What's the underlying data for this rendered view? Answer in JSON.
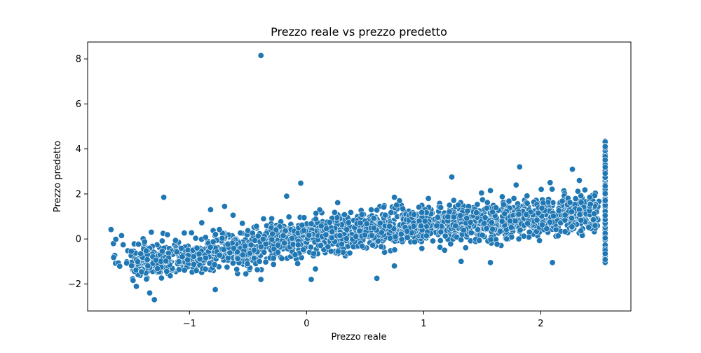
{
  "colors": {
    "marker": "#1f77b4",
    "marker_edge": "#ffffff",
    "axes": "#000000",
    "background": "#ffffff"
  },
  "chart_data": {
    "type": "scatter",
    "title": "Prezzo reale vs prezzo predetto",
    "xlabel": "Prezzo reale",
    "ylabel": "Prezzo predetto",
    "xlim": [
      -1.87,
      2.77
    ],
    "ylim": [
      -3.2,
      8.75
    ],
    "xticks": [
      -1,
      0,
      1,
      2
    ],
    "xtick_labels": [
      "−1",
      "0",
      "1",
      "2"
    ],
    "yticks": [
      -2,
      0,
      2,
      4,
      6,
      8
    ],
    "ytick_labels": [
      "−2",
      "0",
      "2",
      "4",
      "6",
      "8"
    ],
    "grid": false,
    "legend": "none",
    "outliers": {
      "x": [
        -0.39,
        -0.05,
        -0.17,
        -1.22,
        -0.82,
        -0.7,
        1.24,
        1.57,
        1.82,
        2.08,
        2.27,
        2.33,
        1.79,
        0.75,
        -1.3,
        -1.34,
        -0.78,
        -0.39,
        0.04,
        0.6,
        2.1,
        1.57,
        1.32,
        0.75,
        -1.67,
        -1.58
      ],
      "y": [
        8.15,
        2.48,
        1.9,
        1.85,
        1.3,
        1.45,
        2.75,
        2.15,
        3.2,
        2.5,
        3.1,
        2.6,
        2.4,
        1.85,
        -2.7,
        -2.4,
        -2.25,
        -1.8,
        -1.8,
        -1.75,
        -1.05,
        -1.05,
        -1.0,
        -1.2,
        0.42,
        0.15
      ]
    },
    "trend_sample": {
      "x": [
        -1.5,
        -1.25,
        -1.0,
        -0.75,
        -0.5,
        -0.25,
        0.0,
        0.25,
        0.5,
        0.75,
        1.0,
        1.25,
        1.5,
        1.75,
        2.0,
        2.25,
        2.45
      ],
      "y": [
        -1.05,
        -0.9,
        -0.75,
        -0.55,
        -0.35,
        -0.15,
        0.05,
        0.2,
        0.35,
        0.5,
        0.6,
        0.7,
        0.8,
        0.85,
        0.95,
        1.05,
        1.1
      ]
    },
    "capped_column": {
      "x": 2.55,
      "y_min": -1.05,
      "y_max": 4.5
    }
  }
}
